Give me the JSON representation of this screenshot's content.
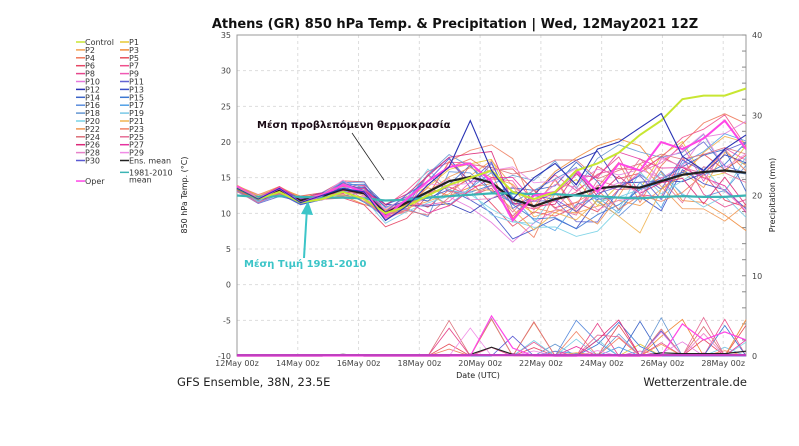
{
  "chart_data": {
    "type": "line",
    "title": "Athens  (GR)  850 hPa Temp. & Precipitation | Wed, 12May2021 12Z",
    "xlabel": "Date (UTC)",
    "ylabel": "850 hPa Temp. (°C)",
    "y2label": "Precipitation (mm)",
    "ylim": [
      -10,
      35
    ],
    "y2lim": [
      0,
      40
    ],
    "xlim_days": [
      0,
      16.75
    ],
    "yticks": [
      -10,
      -5,
      0,
      5,
      10,
      15,
      20,
      25,
      30,
      35
    ],
    "y2ticks": [
      0,
      10,
      20,
      30,
      40
    ],
    "xtick_labels": [
      "12May 00z",
      "14May 00z",
      "16May 00z",
      "18May 00z",
      "20May 00z",
      "22May 00z",
      "24May 00z",
      "26May 00z",
      "28May 00z"
    ],
    "grid": true,
    "legend_position": "left",
    "legend": [
      {
        "name": "Control",
        "color": "#c8e632"
      },
      {
        "name": "P1",
        "color": "#e6c832"
      },
      {
        "name": "P2",
        "color": "#f5a050"
      },
      {
        "name": "P3",
        "color": "#f08c3c"
      },
      {
        "name": "P4",
        "color": "#f0785a"
      },
      {
        "name": "P5",
        "color": "#e6505a"
      },
      {
        "name": "P6",
        "color": "#e64664"
      },
      {
        "name": "P7",
        "color": "#f0508c"
      },
      {
        "name": "P8",
        "color": "#e6468c"
      },
      {
        "name": "P9",
        "color": "#f05ab4"
      },
      {
        "name": "P10",
        "color": "#e678dc"
      },
      {
        "name": "P11",
        "color": "#6464d2"
      },
      {
        "name": "P12",
        "color": "#2832b4"
      },
      {
        "name": "P13",
        "color": "#3c50c8"
      },
      {
        "name": "P14",
        "color": "#3c64c8"
      },
      {
        "name": "P15",
        "color": "#3c78d2"
      },
      {
        "name": "P16",
        "color": "#5a8cdc"
      },
      {
        "name": "P17",
        "color": "#50a0e6"
      },
      {
        "name": "P18",
        "color": "#6496d2"
      },
      {
        "name": "P19",
        "color": "#78c8e6"
      },
      {
        "name": "P20",
        "color": "#78d2e6"
      },
      {
        "name": "P21",
        "color": "#f0b450"
      },
      {
        "name": "P22",
        "color": "#f09650"
      },
      {
        "name": "P23",
        "color": "#f08264"
      },
      {
        "name": "P24",
        "color": "#dc6e78"
      },
      {
        "name": "P25",
        "color": "#e66e96"
      },
      {
        "name": "P26",
        "color": "#dc2878"
      },
      {
        "name": "P27",
        "color": "#e632a0"
      },
      {
        "name": "P28",
        "color": "#e682c8"
      },
      {
        "name": "P29",
        "color": "#f08ce6"
      },
      {
        "name": "P30",
        "color": "#5a5ad2"
      },
      {
        "name": "Ens. mean",
        "color": "#222222"
      },
      {
        "name": "1981-2010 mean",
        "color": "#3cb4b4"
      },
      {
        "name": "Oper",
        "color": "#ff46e6"
      }
    ],
    "series": [
      {
        "name": "Ens. mean",
        "temp": [
          13.5,
          12,
          13.2,
          11.8,
          12.4,
          13.4,
          12.8,
          10,
          11.5,
          13,
          14.5,
          15.1,
          14.3,
          12,
          11,
          12,
          12.6,
          13.5,
          13.8,
          13.6,
          14.5,
          15.4,
          15.8,
          16,
          15.7
        ],
        "precip": [
          0,
          0,
          0,
          0,
          0,
          0.2,
          0,
          0,
          0,
          0,
          0,
          0.2,
          1.1,
          0.2,
          0.1,
          0,
          0,
          0.2,
          0,
          0,
          0.4,
          0.3,
          0.3,
          0.3,
          0.6
        ]
      },
      {
        "name": "1981-2010 mean",
        "temp": [
          12.5,
          12.3,
          12.4,
          12.3,
          12.2,
          12.2,
          12.1,
          11.8,
          11.9,
          12.2,
          12.4,
          12.6,
          12.8,
          12.8,
          12.7,
          12.7,
          12.5,
          12.4,
          12.2,
          12.1,
          12.3,
          12.4,
          12.3,
          12.3,
          12.5
        ]
      },
      {
        "name": "Oper",
        "temp": [
          13.8,
          12,
          13.5,
          11.5,
          12.5,
          14,
          13,
          9.5,
          12,
          14.5,
          16.5,
          17,
          14.5,
          9,
          12.5,
          13,
          16,
          13,
          17,
          16,
          20,
          19,
          20.5,
          23,
          19
        ],
        "precip": [
          0,
          0,
          0,
          0,
          0,
          0,
          0,
          0,
          0,
          0,
          0,
          0,
          5,
          1,
          0,
          0,
          0,
          0,
          0,
          0,
          0,
          4,
          2,
          3,
          2
        ]
      },
      {
        "name": "Control",
        "temp": [
          13.5,
          12,
          13,
          11.5,
          12,
          13,
          12,
          10,
          11,
          12.5,
          14,
          15,
          16,
          13,
          12,
          13,
          16,
          17,
          18.5,
          21,
          23,
          26,
          26.5,
          26.5,
          27.5
        ]
      },
      {
        "name": "P12",
        "temp": [
          13.5,
          12,
          13.5,
          11.5,
          12.5,
          13.5,
          13,
          9,
          11,
          14,
          16.5,
          23,
          16,
          12,
          15,
          17,
          14,
          19,
          20,
          22,
          24,
          18,
          16,
          19,
          21
        ]
      }
    ]
  },
  "annotations": {
    "forecast_mean": "Μέση προβλεπόμενη θερμοκρασία",
    "climate_mean": "Μέση Τιμή 1981-2010"
  },
  "footer": {
    "left": "GFS Ensemble, 38N, 23.5E",
    "right": "Wetterzentrale.de"
  }
}
